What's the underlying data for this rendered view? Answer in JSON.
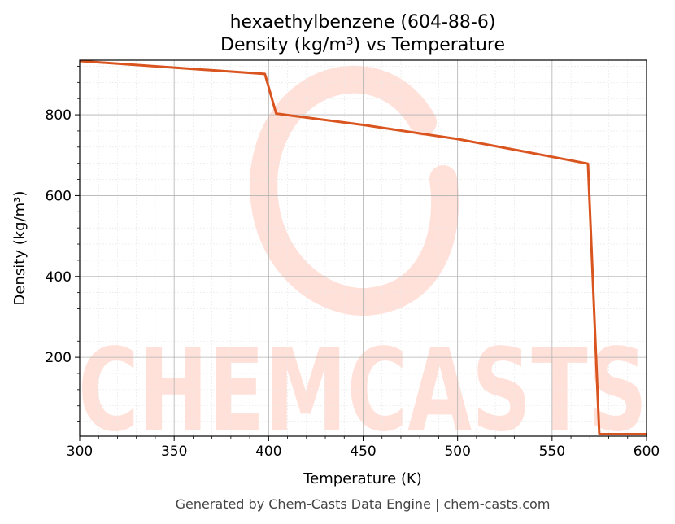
{
  "chart_data": {
    "type": "line",
    "title": "hexaethylbenzene (604-88-6)",
    "subtitle": "Density (kg/m³) vs Temperature",
    "xlabel": "Temperature (K)",
    "ylabel": "Density (kg/m³)",
    "xlim": [
      300,
      600
    ],
    "ylim": [
      5,
      935
    ],
    "xticks": [
      300,
      350,
      400,
      450,
      500,
      550,
      600
    ],
    "yticks": [
      200,
      400,
      600,
      800
    ],
    "grid": true,
    "series_color": "#d9541e",
    "series": [
      {
        "x": [
          300,
          398,
          404,
          450,
          500,
          540,
          569,
          575,
          600
        ],
        "values": [
          933,
          901,
          803,
          775,
          740,
          705,
          679,
          10,
          10
        ]
      }
    ]
  },
  "watermark": {
    "text": "CHEMCASTS",
    "color": "#ffe1da"
  },
  "footer": "Generated by Chem-Casts Data Engine | chem-casts.com"
}
